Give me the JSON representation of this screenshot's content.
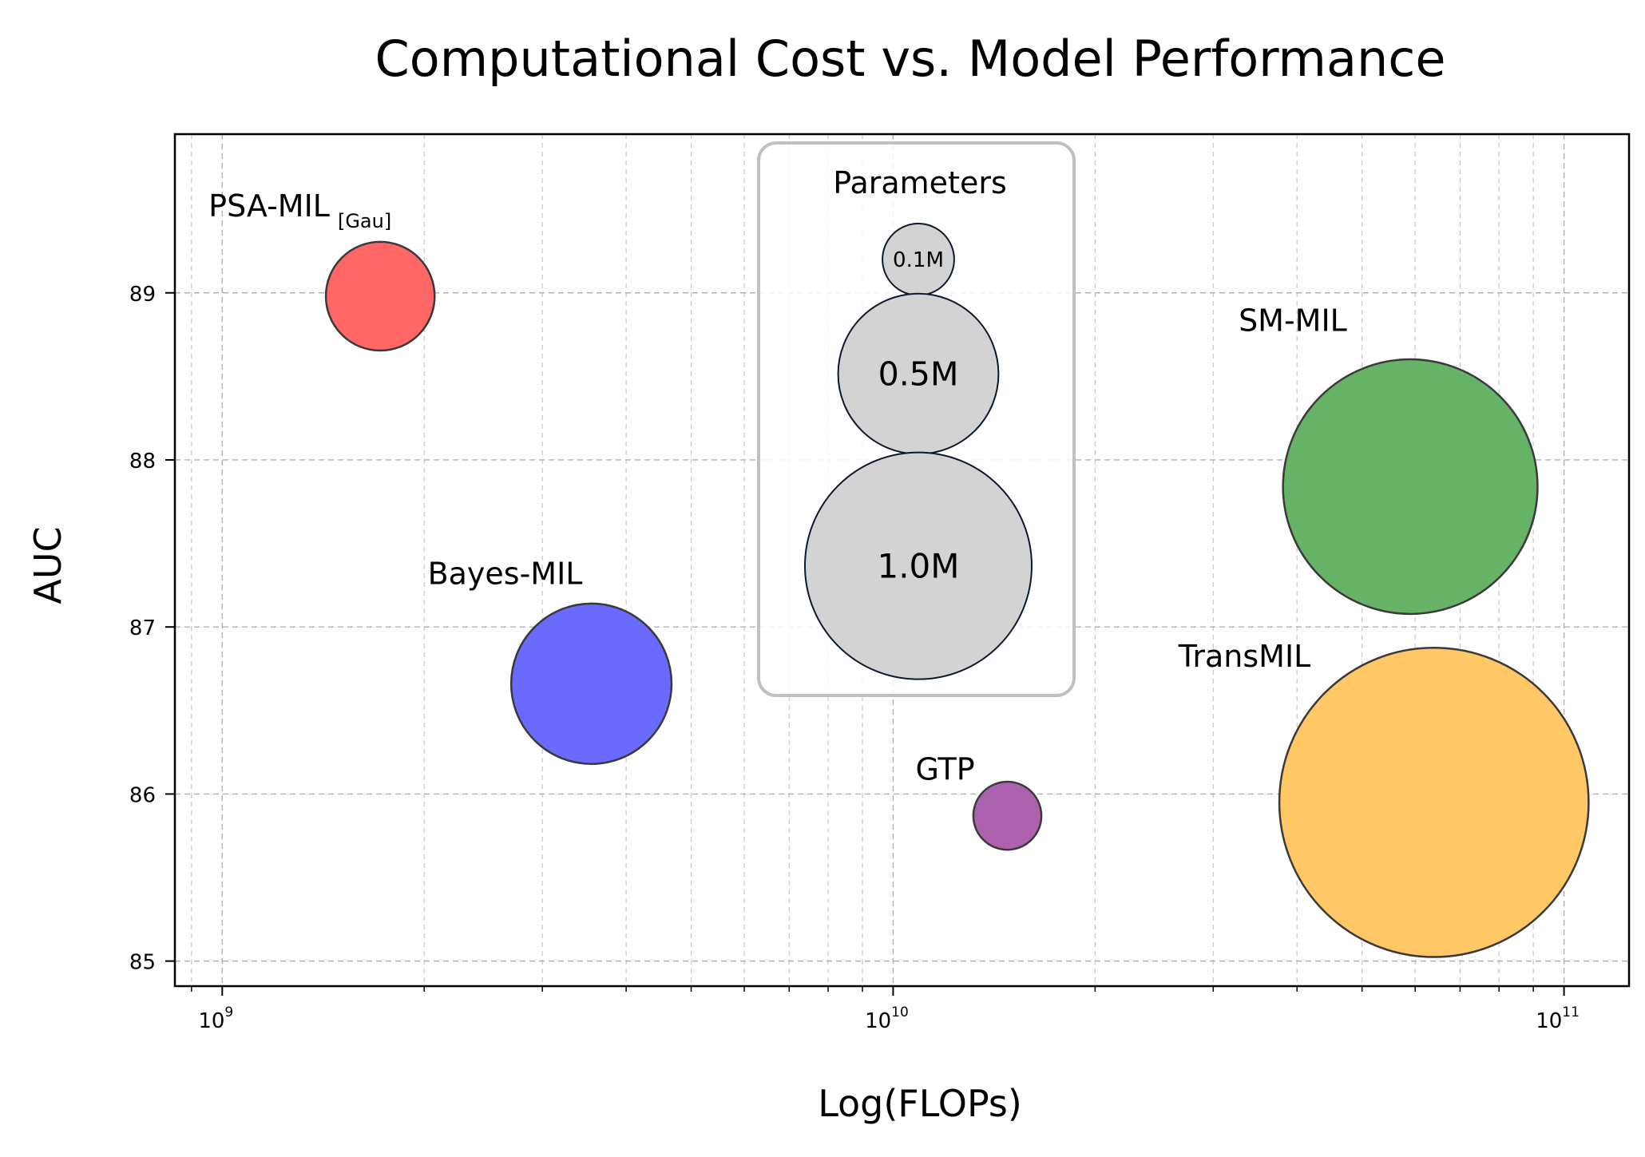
{
  "chart_data": {
    "type": "scatter",
    "title": "Computational Cost vs. Model Performance",
    "xlabel": "Log(FLOPs)",
    "ylabel": "AUC",
    "x_scale": "log",
    "xlim": [
      850000000,
      125000000000
    ],
    "ylim": [
      84.85,
      89.95
    ],
    "x_ticks": [
      {
        "value": 1000000000,
        "base": "10",
        "exp": "9"
      },
      {
        "value": 10000000000,
        "base": "10",
        "exp": "10"
      },
      {
        "value": 100000000000,
        "base": "10",
        "exp": "11"
      }
    ],
    "y_ticks": [
      85,
      86,
      87,
      88,
      89
    ],
    "grid": true,
    "size_encoding": "Parameters",
    "series": [
      {
        "name": "PSA-MIL",
        "name_sub": "[Gau]",
        "flops": 1720000000,
        "auc": 88.98,
        "params_m": 0.23,
        "color": "#ff6666"
      },
      {
        "name": "Bayes-MIL",
        "flops": 3550000000,
        "auc": 86.66,
        "params_m": 0.5,
        "color": "#6a6aff"
      },
      {
        "name": "GTP",
        "flops": 14800000000,
        "auc": 85.87,
        "params_m": 0.09,
        "color": "#ad62ad"
      },
      {
        "name": "SM-MIL",
        "flops": 59000000000,
        "auc": 87.84,
        "params_m": 1.26,
        "color": "#66b266"
      },
      {
        "name": "TransMIL",
        "flops": 64000000000,
        "auc": 85.95,
        "params_m": 1.86,
        "color": "#ffc766"
      }
    ],
    "legend": {
      "title": "Parameters",
      "placement": "top-center",
      "entries": [
        {
          "label": "0.1M",
          "params_m": 0.1
        },
        {
          "label": "0.5M",
          "params_m": 0.5
        },
        {
          "label": "1.0M",
          "params_m": 1.0
        }
      ],
      "color": "#d3d3d3"
    }
  }
}
